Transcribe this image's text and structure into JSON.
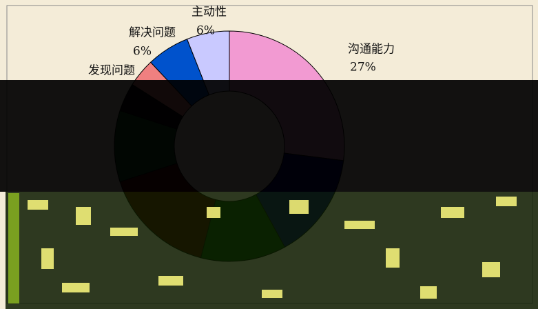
{
  "chart_data": {
    "type": "donut",
    "categories": [
      "沟通能力",
      null,
      null,
      null,
      null,
      null,
      "发现问题",
      "解决问题",
      "主动性"
    ],
    "values": [
      27,
      15,
      12,
      16,
      10,
      4,
      4,
      6,
      6
    ],
    "value_labels": [
      "27%",
      null,
      null,
      null,
      null,
      null,
      null,
      "6%",
      "6%"
    ],
    "colors": [
      "#f29ad2",
      "#00007a",
      "#0b4d0b",
      "#5a0000",
      "#0f5a1e",
      "#1a001a",
      "#f08080",
      "#0052cc",
      "#c9c9ff"
    ]
  }
}
